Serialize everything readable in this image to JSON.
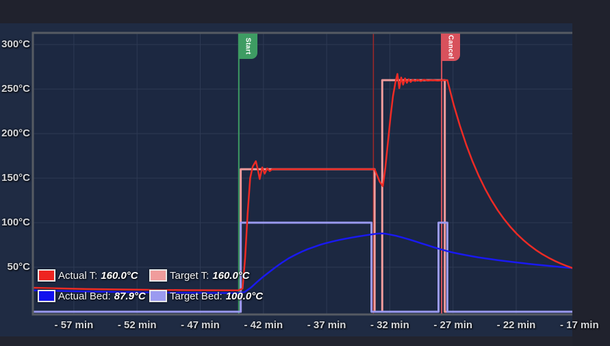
{
  "legend": {
    "items": [
      {
        "id": "actual-tool",
        "label": "Actual T:",
        "value": "160.0°C",
        "color": "#ee2421"
      },
      {
        "id": "target-tool",
        "label": "Target T:",
        "value": "160.0°C",
        "color": "#f09c9c"
      },
      {
        "id": "actual-bed",
        "label": "Actual Bed:",
        "value": "87.9°C",
        "color": "#1111ee"
      },
      {
        "id": "target-bed",
        "label": "Target Bed:",
        "value": "100.0°C",
        "color": "#9a9af0"
      }
    ]
  },
  "colors": {
    "page_top": "#20222d",
    "chart_bg": "#1f2b43",
    "plot_bg": "#1c2841",
    "grid": "#2e3a54",
    "border": "#565b63",
    "page_bottom": "#22242f",
    "tick_text": "#d6d8dc",
    "legend_text": "#f2f3f5"
  },
  "chart_data": {
    "type": "line",
    "grid": true,
    "legend_position": "bottom-left-inside",
    "xlim": [
      -60.3,
      -17.55
    ],
    "ylim": [
      0,
      315
    ],
    "x_ticks": [
      {
        "t": -57,
        "label": "- 57 min"
      },
      {
        "t": -52,
        "label": "- 52 min"
      },
      {
        "t": -47,
        "label": "- 47 min"
      },
      {
        "t": -42,
        "label": "- 42 min"
      },
      {
        "t": -37,
        "label": "- 37 min"
      },
      {
        "t": -32,
        "label": "- 32 min"
      },
      {
        "t": -27,
        "label": "- 27 min"
      },
      {
        "t": -22,
        "label": "- 22 min"
      },
      {
        "t": -17,
        "label": "- 17 min"
      }
    ],
    "y_ticks": [
      {
        "value": 300,
        "label": "300°C"
      },
      {
        "value": 250,
        "label": "250°C"
      },
      {
        "value": 200,
        "label": "200°C"
      },
      {
        "value": 150,
        "label": "150°C"
      },
      {
        "value": 100,
        "label": "100°C"
      },
      {
        "value": 50,
        "label": "50°C"
      }
    ],
    "annotations": [
      {
        "label": "Start",
        "time_min": -43.95,
        "color": "#3e9c63",
        "type": "flag"
      },
      {
        "time_min": -33.3,
        "color": "#a02828",
        "type": "crosshair"
      },
      {
        "label": "Cancel",
        "time_min": -27.9,
        "color": "#d8515c",
        "type": "flag"
      }
    ],
    "series": [
      {
        "name": "Actual T",
        "color": "#ee2b25",
        "width": 2.5,
        "z": 4,
        "points": [
          [
            -60.3,
            27
          ],
          [
            -56,
            25.5
          ],
          [
            -52,
            24.8
          ],
          [
            -48,
            24.2
          ],
          [
            -44,
            24
          ],
          [
            -43.65,
            26
          ],
          [
            -43.45,
            60
          ],
          [
            -43.25,
            110
          ],
          [
            -43.05,
            150
          ],
          [
            -42.85,
            163
          ],
          [
            -42.6,
            169
          ],
          [
            -42.45,
            160
          ],
          [
            -42.3,
            149
          ],
          [
            -42.1,
            162
          ],
          [
            -41.9,
            155
          ],
          [
            -41.7,
            161
          ],
          [
            -41.5,
            158
          ],
          [
            -41.3,
            160
          ],
          [
            -38,
            160
          ],
          [
            -33.2,
            160
          ],
          [
            -33.0,
            153
          ],
          [
            -32.8,
            146
          ],
          [
            -32.55,
            141
          ],
          [
            -32.35,
            162
          ],
          [
            -32.15,
            190
          ],
          [
            -31.95,
            218
          ],
          [
            -31.75,
            242
          ],
          [
            -31.55,
            258
          ],
          [
            -31.4,
            267
          ],
          [
            -31.25,
            251
          ],
          [
            -31.1,
            263
          ],
          [
            -30.95,
            255
          ],
          [
            -30.8,
            262
          ],
          [
            -30.65,
            257
          ],
          [
            -30.5,
            261
          ],
          [
            -30.35,
            258
          ],
          [
            -30.2,
            260.5
          ],
          [
            -30.0,
            259
          ],
          [
            -29.8,
            260.5
          ],
          [
            -29.55,
            259
          ],
          [
            -29.3,
            260.5
          ],
          [
            -29.0,
            259.5
          ],
          [
            -28.6,
            260
          ],
          [
            -28.2,
            259.5
          ],
          [
            -27.8,
            260
          ],
          [
            -27.45,
            260
          ],
          [
            -26.95,
            232.6
          ],
          [
            -26.45,
            208.5
          ],
          [
            -25.95,
            187.3
          ],
          [
            -25.45,
            168.6
          ],
          [
            -24.95,
            152.2
          ],
          [
            -24.45,
            137.7
          ],
          [
            -23.95,
            124.9
          ],
          [
            -23.45,
            113.7
          ],
          [
            -22.95,
            103.8
          ],
          [
            -22.45,
            95.1
          ],
          [
            -21.95,
            87.4
          ],
          [
            -21.45,
            80.6
          ],
          [
            -20.95,
            74.7
          ],
          [
            -20.45,
            69.4
          ],
          [
            -19.95,
            64.8
          ],
          [
            -19.45,
            60.7
          ],
          [
            -18.95,
            57.1
          ],
          [
            -18.45,
            53.9
          ],
          [
            -17.95,
            51.1
          ],
          [
            -17.55,
            49.1
          ]
        ]
      },
      {
        "name": "Target T",
        "color": "#f09c9c",
        "width": 3,
        "z": 1,
        "points": [
          [
            -60.3,
            0
          ],
          [
            -43.8,
            0
          ],
          [
            -43.8,
            160
          ],
          [
            -33.2,
            160
          ],
          [
            -33.2,
            0
          ],
          [
            -32.6,
            0
          ],
          [
            -32.6,
            260
          ],
          [
            -27.65,
            260
          ],
          [
            -27.65,
            0
          ],
          [
            -17.55,
            0
          ]
        ]
      },
      {
        "name": "Actual Bed",
        "color": "#1919f2",
        "width": 2.5,
        "z": 3,
        "points": [
          [
            -60.3,
            24
          ],
          [
            -55,
            22.5
          ],
          [
            -50,
            21.5
          ],
          [
            -44,
            21
          ],
          [
            -43.5,
            22
          ],
          [
            -43.0,
            27
          ],
          [
            -42.5,
            33.5
          ],
          [
            -42.0,
            39.5
          ],
          [
            -41.5,
            45
          ],
          [
            -41.0,
            50.5
          ],
          [
            -40.5,
            55.5
          ],
          [
            -40.0,
            60
          ],
          [
            -39.5,
            63.8
          ],
          [
            -39.0,
            67.2
          ],
          [
            -38.5,
            70.2
          ],
          [
            -38.0,
            72.8
          ],
          [
            -37.5,
            75.2
          ],
          [
            -37.0,
            77.2
          ],
          [
            -36.5,
            79
          ],
          [
            -36.0,
            80.6
          ],
          [
            -35.5,
            82
          ],
          [
            -35.0,
            83.3
          ],
          [
            -34.5,
            84.5
          ],
          [
            -34.0,
            85.6
          ],
          [
            -33.5,
            86.7
          ],
          [
            -33.2,
            87.3
          ],
          [
            -32.9,
            87.8
          ],
          [
            -32.6,
            87.9
          ],
          [
            -32.3,
            87.5
          ],
          [
            -32.0,
            86.7
          ],
          [
            -31.5,
            85.2
          ],
          [
            -31.0,
            83.3
          ],
          [
            -30.5,
            81.3
          ],
          [
            -30.0,
            79.1
          ],
          [
            -29.5,
            76.8
          ],
          [
            -29.0,
            74.5
          ],
          [
            -28.5,
            72.3
          ],
          [
            -28.0,
            70.2
          ],
          [
            -27.5,
            68.2
          ],
          [
            -27.0,
            66.5
          ],
          [
            -26.5,
            65
          ],
          [
            -26.0,
            63.6
          ],
          [
            -25.5,
            62.3
          ],
          [
            -25.0,
            61.1
          ],
          [
            -24.5,
            60
          ],
          [
            -24.0,
            59
          ],
          [
            -23.5,
            58
          ],
          [
            -23.0,
            57.1
          ],
          [
            -22.5,
            56.2
          ],
          [
            -22.0,
            55.4
          ],
          [
            -21.5,
            54.6
          ],
          [
            -21.0,
            53.8
          ],
          [
            -20.5,
            53
          ],
          [
            -20.0,
            52.3
          ],
          [
            -19.5,
            51.6
          ],
          [
            -19.0,
            50.9
          ],
          [
            -18.5,
            50.2
          ],
          [
            -18.0,
            49.6
          ],
          [
            -17.55,
            49
          ]
        ]
      },
      {
        "name": "Target Bed",
        "color": "#9a9af0",
        "width": 3,
        "z": 2,
        "points": [
          [
            -60.3,
            0
          ],
          [
            -43.8,
            0
          ],
          [
            -43.8,
            100
          ],
          [
            -33.45,
            100
          ],
          [
            -33.45,
            0
          ],
          [
            -28.15,
            0
          ],
          [
            -28.15,
            100
          ],
          [
            -27.45,
            100
          ],
          [
            -27.45,
            0
          ],
          [
            -17.55,
            0
          ]
        ]
      }
    ]
  }
}
